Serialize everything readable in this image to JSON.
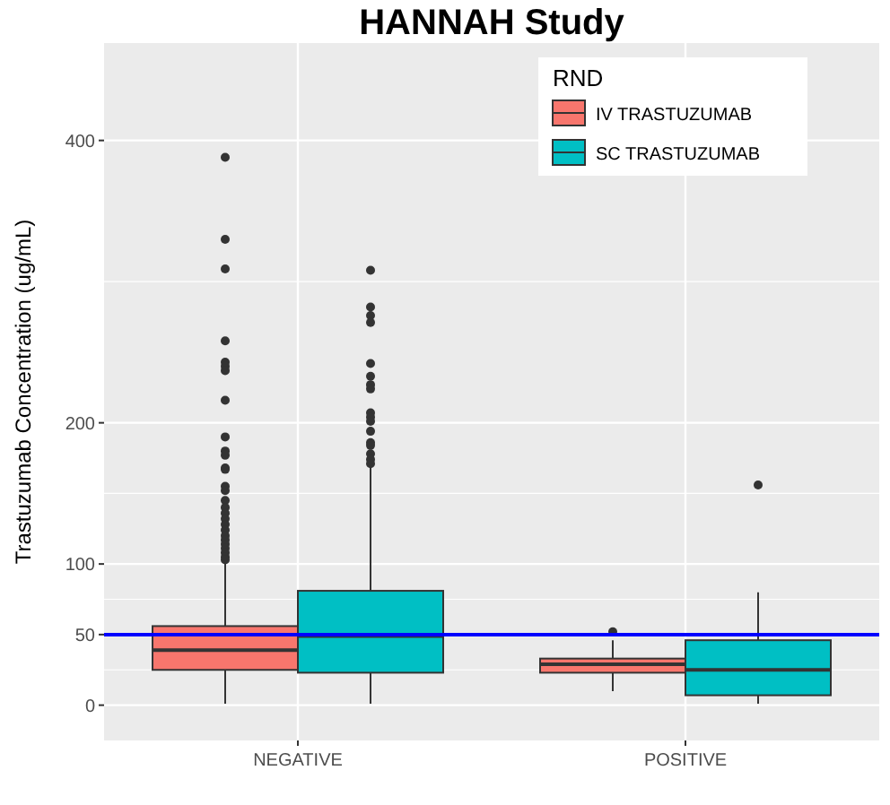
{
  "chart_data": {
    "type": "box",
    "title": "HANNAH Study",
    "ylabel": "Trastuzumab Concentration (ug/mL)",
    "legend_title": "RND",
    "legend": "top right",
    "grid": true,
    "categories": [
      "NEGATIVE",
      "POSITIVE"
    ],
    "ylim": [
      -25,
      469
    ],
    "yticks": [
      0,
      50,
      100,
      200,
      400
    ],
    "ref_lines": [
      {
        "axis": "y",
        "value": 50,
        "color": "#0000ff"
      }
    ],
    "series": [
      {
        "name": "IV TRASTUZUMAB",
        "color": "#f8766d",
        "boxes": [
          {
            "low": 1,
            "q1": 25,
            "median": 39,
            "q3": 56,
            "high": 102,
            "outliers": [
              388,
              330,
              309,
              258,
              243,
              240,
              237,
              216,
              190,
              180,
              177,
              168,
              167,
              155,
              152,
              145,
              140,
              136,
              132,
              128,
              124,
              120,
              117,
              114,
              111,
              108,
              105,
              103
            ]
          },
          {
            "low": 10,
            "q1": 23,
            "median": 29,
            "q3": 33,
            "high": 46,
            "outliers": [
              52
            ]
          }
        ]
      },
      {
        "name": "SC TRASTUZUMAB",
        "color": "#00bfc4",
        "boxes": [
          {
            "low": 1,
            "q1": 23,
            "median": 49,
            "q3": 81,
            "high": 168,
            "outliers": [
              308,
              282,
              276,
              271,
              242,
              233,
              227,
              224,
              207,
              204,
              201,
              194,
              186,
              184,
              178,
              174,
              171
            ]
          },
          {
            "low": 1,
            "q1": 7,
            "median": 25,
            "q3": 46,
            "high": 80,
            "outliers": [
              156
            ]
          }
        ]
      }
    ]
  }
}
